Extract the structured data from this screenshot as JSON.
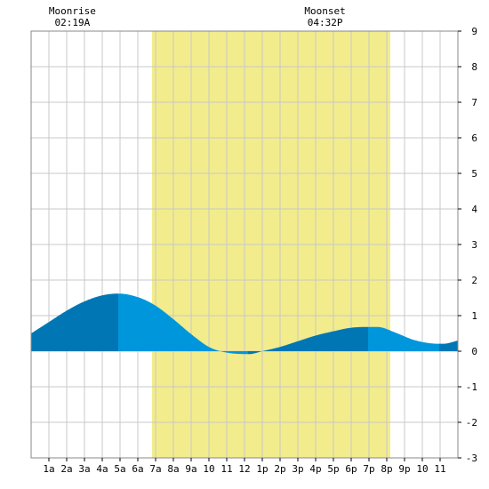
{
  "chart_data": {
    "type": "area",
    "title": "",
    "xlabel": "",
    "ylabel": "",
    "xlim": [
      0,
      24
    ],
    "ylim": [
      -3,
      9
    ],
    "y_ticks": [
      -3,
      -2,
      -1,
      0,
      1,
      2,
      3,
      4,
      5,
      6,
      7,
      8,
      9
    ],
    "y_tick_labels": [
      "-3",
      "-2",
      "-1",
      "0",
      "1",
      "2",
      "3",
      "4",
      "5",
      "6",
      "7",
      "8",
      "9"
    ],
    "x_ticks": [
      1,
      2,
      3,
      4,
      5,
      6,
      7,
      8,
      9,
      10,
      11,
      12,
      13,
      14,
      15,
      16,
      17,
      18,
      19,
      20,
      21,
      22,
      23
    ],
    "x_tick_labels": [
      "1a",
      "2a",
      "3a",
      "4a",
      "5a",
      "6a",
      "7a",
      "8a",
      "9a",
      "10",
      "11",
      "12",
      "1p",
      "2p",
      "3p",
      "4p",
      "5p",
      "6p",
      "7p",
      "8p",
      "9p",
      "10",
      "11"
    ],
    "grid": true,
    "daylight": {
      "start": 6.8,
      "end": 20.2,
      "color": "#f2ec8c"
    },
    "series": [
      {
        "x": [
          0,
          1,
          2,
          3,
          4,
          4.9,
          6,
          7,
          8,
          9,
          10,
          11,
          12.3,
          13,
          14,
          15,
          16,
          17,
          18,
          19.5,
          20.5,
          21.5,
          22.5,
          23.2,
          24
        ],
        "values": [
          0.5,
          0.82,
          1.14,
          1.4,
          1.57,
          1.62,
          1.52,
          1.28,
          0.9,
          0.48,
          0.12,
          -0.04,
          -0.08,
          0.0,
          0.12,
          0.28,
          0.44,
          0.56,
          0.66,
          0.68,
          0.52,
          0.32,
          0.22,
          0.21,
          0.3
        ]
      }
    ],
    "colors": {
      "tide_light": "#0096dc",
      "tide_dark": "#0077b4",
      "grid": "#c8c8c8",
      "frame": "#888888"
    },
    "annotations": [
      {
        "label": "Moonrise",
        "time": "02:19A",
        "x": 2.32
      },
      {
        "label": "Moonset",
        "time": "04:32P",
        "x": 16.53
      }
    ]
  }
}
